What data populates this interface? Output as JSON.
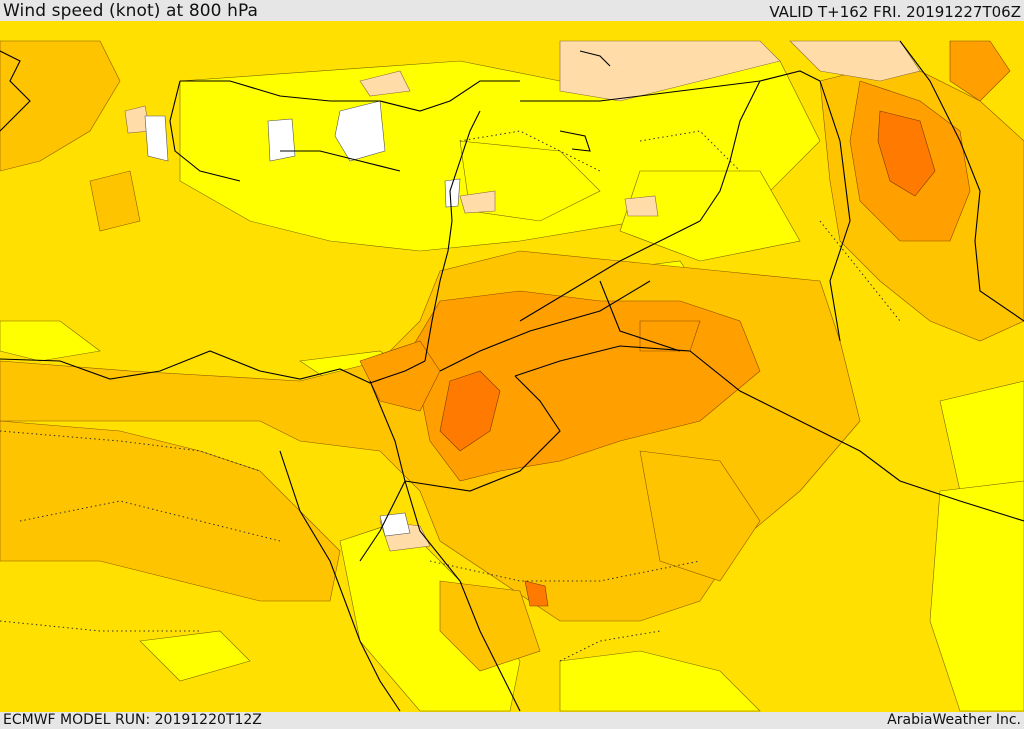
{
  "header": {
    "title": "Wind speed (knot) at 800 hPa",
    "valid": "VALID T+162 FRI. 20191227T06Z"
  },
  "footer": {
    "model_run": "ECMWF MODEL RUN: 20191220T12Z",
    "credit": "ArabiaWeather Inc."
  },
  "colors": {
    "band_lightest": "#ffff00",
    "band_light": "#ffe000",
    "band_mid": "#ffc400",
    "band_strong": "#ff9f00",
    "band_stronger": "#ff7a00",
    "band_calm_peach": "#ffdca8",
    "band_calm_white": "#ffffff",
    "coastline": "#000000"
  }
}
